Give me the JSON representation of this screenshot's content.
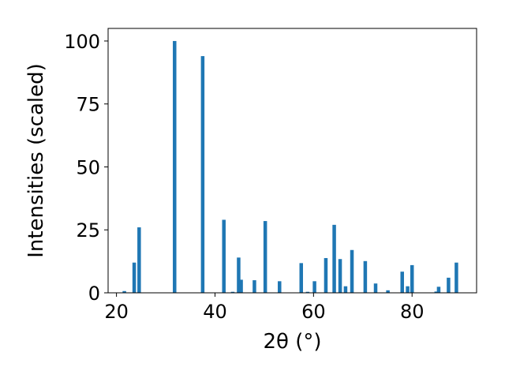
{
  "chart_data": {
    "type": "bar",
    "title": "",
    "xlabel": "2θ (°)",
    "ylabel": "Intensities (scaled)",
    "xlim": [
      18.3,
      93.1
    ],
    "ylim": [
      0,
      105
    ],
    "xticks": [
      "20",
      "40",
      "60",
      "80"
    ],
    "yticks": [
      "0",
      "25",
      "50",
      "75",
      "100"
    ],
    "grid": false,
    "legend": "none",
    "bar_color": "#1f77b4",
    "x": [
      21.6,
      23.6,
      24.6,
      31.8,
      37.5,
      41.8,
      43.6,
      44.8,
      45.3,
      48.0,
      50.2,
      53.1,
      57.5,
      58.8,
      60.2,
      62.5,
      64.2,
      65.4,
      66.5,
      67.8,
      70.5,
      72.6,
      75.1,
      78.0,
      79.1,
      80.0,
      84.9,
      85.4,
      87.4,
      89.0
    ],
    "values": [
      0.7,
      12.0,
      26.0,
      100.0,
      94.0,
      29.0,
      0.4,
      14.0,
      5.2,
      5.0,
      28.5,
      4.6,
      11.8,
      0.4,
      4.6,
      13.8,
      27.0,
      13.4,
      2.6,
      17.0,
      12.6,
      3.7,
      1.0,
      8.4,
      2.6,
      11.0,
      0.5,
      2.4,
      6.0,
      12.0
    ]
  }
}
